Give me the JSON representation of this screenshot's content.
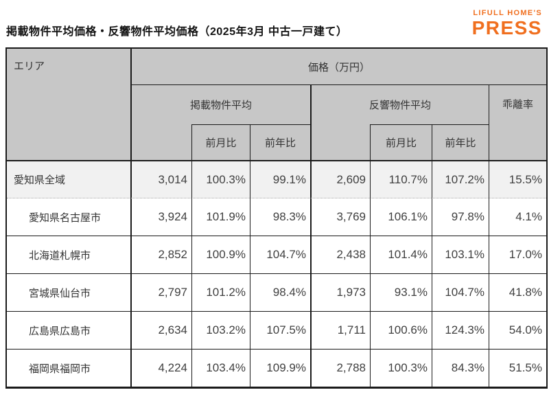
{
  "title": "掲載物件平均価格・反響物件平均価格（2025年3月 中古一戸建て）",
  "logo": {
    "line1": "LIFULL HOME'S",
    "line2": "PRESS",
    "color": "#F06F1F"
  },
  "table": {
    "headers": {
      "area": "エリア",
      "price_unit": "価格（万円）",
      "listed_avg": "掲載物件平均",
      "response_avg": "反響物件平均",
      "deviation_rate": "乖離率",
      "mom": "前月比",
      "yoy": "前年比"
    },
    "rows": [
      {
        "area": "愛知県全域",
        "listed": "3,014",
        "listed_mom": "100.3%",
        "listed_yoy": "99.1%",
        "response": "2,609",
        "response_mom": "110.7%",
        "response_yoy": "107.2%",
        "deviation": "15.5%"
      },
      {
        "area": "愛知県名古屋市",
        "listed": "3,924",
        "listed_mom": "101.9%",
        "listed_yoy": "98.3%",
        "response": "3,769",
        "response_mom": "106.1%",
        "response_yoy": "97.8%",
        "deviation": "4.1%"
      },
      {
        "area": "北海道札幌市",
        "listed": "2,852",
        "listed_mom": "100.9%",
        "listed_yoy": "104.7%",
        "response": "2,438",
        "response_mom": "101.4%",
        "response_yoy": "103.1%",
        "deviation": "17.0%"
      },
      {
        "area": "宮城県仙台市",
        "listed": "2,797",
        "listed_mom": "101.2%",
        "listed_yoy": "98.4%",
        "response": "1,973",
        "response_mom": "93.1%",
        "response_yoy": "104.7%",
        "deviation": "41.8%"
      },
      {
        "area": "広島県広島市",
        "listed": "2,634",
        "listed_mom": "103.2%",
        "listed_yoy": "107.5%",
        "response": "1,711",
        "response_mom": "100.6%",
        "response_yoy": "124.3%",
        "deviation": "54.0%"
      },
      {
        "area": "福岡県福岡市",
        "listed": "4,224",
        "listed_mom": "103.4%",
        "listed_yoy": "109.9%",
        "response": "2,788",
        "response_mom": "100.3%",
        "response_yoy": "84.3%",
        "deviation": "51.5%"
      }
    ]
  },
  "chart_data": {
    "type": "table",
    "title": "掲載物件平均価格・反響物件平均価格（2025年3月 中古一戸建て）",
    "unit": "万円",
    "columns": [
      "エリア",
      "掲載物件平均",
      "掲載 前月比",
      "掲載 前年比",
      "反響物件平均",
      "反響 前月比",
      "反響 前年比",
      "乖離率"
    ],
    "rows": [
      [
        "愛知県全域",
        3014,
        "100.3%",
        "99.1%",
        2609,
        "110.7%",
        "107.2%",
        "15.5%"
      ],
      [
        "愛知県名古屋市",
        3924,
        "101.9%",
        "98.3%",
        3769,
        "106.1%",
        "97.8%",
        "4.1%"
      ],
      [
        "北海道札幌市",
        2852,
        "100.9%",
        "104.7%",
        2438,
        "101.4%",
        "103.1%",
        "17.0%"
      ],
      [
        "宮城県仙台市",
        2797,
        "101.2%",
        "98.4%",
        1973,
        "93.1%",
        "104.7%",
        "41.8%"
      ],
      [
        "広島県広島市",
        2634,
        "103.2%",
        "107.5%",
        1711,
        "100.6%",
        "124.3%",
        "54.0%"
      ],
      [
        "福岡県福岡市",
        4224,
        "103.4%",
        "109.9%",
        2788,
        "100.3%",
        "84.3%",
        "51.5%"
      ]
    ]
  }
}
